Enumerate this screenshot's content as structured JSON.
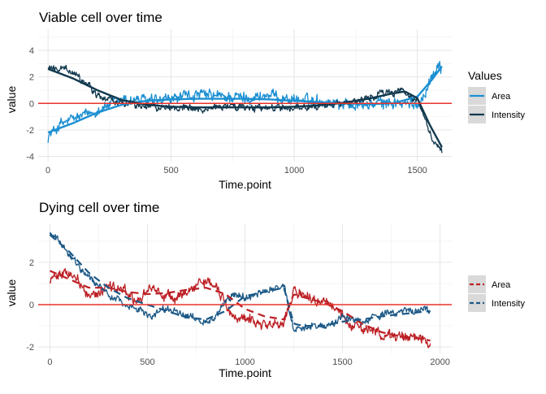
{
  "chart_data": [
    {
      "type": "line",
      "title": "Viable cell over time",
      "xlabel": "Time.point",
      "ylabel": "value",
      "xlim": [
        -40,
        1640
      ],
      "ylim": [
        -4.4,
        5.6
      ],
      "x_ticks": [
        0,
        500,
        1000,
        1500
      ],
      "y_ticks": [
        -4,
        -2,
        0,
        2,
        4
      ],
      "x_tick_labels": [
        "0",
        "500",
        "1000",
        "1500"
      ],
      "y_tick_labels": [
        "-4",
        "-2",
        "0",
        "2",
        "4"
      ],
      "grid": true,
      "reference_line": {
        "y": 0,
        "color": "#e8322a"
      },
      "legend": {
        "title": "Values",
        "position": "right",
        "entries": [
          "Area",
          "Intensity"
        ]
      },
      "series": [
        {
          "name": "Area",
          "color": "#1b8fd2",
          "raw": {
            "x": [
              0,
              50,
              100,
              150,
              200,
              250,
              300,
              350,
              400,
              450,
              500,
              550,
              600,
              650,
              700,
              750,
              800,
              850,
              900,
              950,
              1000,
              1050,
              1100,
              1150,
              1200,
              1250,
              1300,
              1350,
              1400,
              1450,
              1500,
              1530,
              1560,
              1590,
              1600
            ],
            "y": [
              -2.5,
              -1.6,
              -1.2,
              -0.9,
              -0.5,
              -0.1,
              0.3,
              0.3,
              0.2,
              0.1,
              0.3,
              0.5,
              0.6,
              0.6,
              0.5,
              0.5,
              0.4,
              0.5,
              0.6,
              0.4,
              0.3,
              0.2,
              0.2,
              0.1,
              0.0,
              -0.1,
              -0.1,
              0.0,
              0.1,
              -0.1,
              -0.1,
              0.8,
              2.0,
              3.2,
              2.6
            ],
            "noise": 0.55
          },
          "smooth": {
            "x": [
              0,
              100,
              200,
              300,
              400,
              500,
              600,
              700,
              800,
              900,
              1000,
              1100,
              1200,
              1300,
              1400,
              1500,
              1560,
              1600
            ],
            "y": [
              -2.2,
              -1.5,
              -0.7,
              -0.1,
              0.2,
              0.3,
              0.35,
              0.35,
              0.35,
              0.3,
              0.2,
              0.1,
              0.0,
              -0.05,
              0.0,
              0.5,
              1.8,
              2.8
            ]
          }
        },
        {
          "name": "Intensity",
          "color": "#12394f",
          "raw": {
            "x": [
              0,
              50,
              100,
              150,
              200,
              250,
              300,
              350,
              400,
              450,
              500,
              600,
              700,
              800,
              900,
              1000,
              1100,
              1200,
              1250,
              1300,
              1350,
              1400,
              1450,
              1500,
              1530,
              1560,
              1600
            ],
            "y": [
              2.8,
              2.6,
              2.3,
              1.6,
              0.6,
              0.2,
              0.0,
              -0.1,
              -0.2,
              -0.3,
              -0.3,
              -0.3,
              -0.3,
              -0.3,
              -0.35,
              -0.3,
              -0.2,
              0.0,
              0.2,
              0.4,
              0.6,
              0.8,
              0.9,
              0.3,
              -1.2,
              -2.6,
              -3.6
            ],
            "noise": 0.35
          },
          "smooth": {
            "x": [
              0,
              100,
              200,
              300,
              400,
              500,
              600,
              700,
              800,
              900,
              1000,
              1100,
              1200,
              1300,
              1400,
              1450,
              1500,
              1550,
              1600
            ],
            "y": [
              2.6,
              1.9,
              1.0,
              0.25,
              -0.1,
              -0.25,
              -0.3,
              -0.3,
              -0.3,
              -0.3,
              -0.25,
              -0.15,
              0.05,
              0.35,
              0.75,
              0.9,
              0.4,
              -1.6,
              -3.3
            ]
          }
        }
      ]
    },
    {
      "type": "line",
      "title": "Dying cell over time",
      "xlabel": "Time.point",
      "ylabel": "value",
      "xlim": [
        -60,
        2060
      ],
      "ylim": [
        -2.3,
        3.8
      ],
      "x_ticks": [
        0,
        500,
        1000,
        1500,
        2000
      ],
      "y_ticks": [
        -2,
        0,
        2
      ],
      "x_tick_labels": [
        "0",
        "500",
        "1000",
        "1500",
        "2000"
      ],
      "y_tick_labels": [
        "-2",
        "0",
        "2"
      ],
      "grid": true,
      "reference_line": {
        "y": 0,
        "color": "#e8322a"
      },
      "legend": {
        "title": "",
        "position": "right",
        "entries": [
          "Area",
          "Intensity"
        ]
      },
      "series": [
        {
          "name": "Area",
          "color": "#bc1f24",
          "raw": {
            "x": [
              0,
              50,
              100,
              150,
              200,
              250,
              300,
              350,
              400,
              450,
              500,
              550,
              600,
              650,
              700,
              750,
              800,
              850,
              900,
              950,
              1000,
              1050,
              1100,
              1150,
              1200,
              1250,
              1300,
              1350,
              1400,
              1450,
              1500,
              1550,
              1600,
              1650,
              1700,
              1750,
              1800,
              1850,
              1900,
              1950
            ],
            "y": [
              1.3,
              1.5,
              1.6,
              1.1,
              0.4,
              0.6,
              0.9,
              0.8,
              0.6,
              0.1,
              0.7,
              0.6,
              0.5,
              0.3,
              0.6,
              0.9,
              1.1,
              0.9,
              0.1,
              -0.6,
              -0.7,
              -0.8,
              -0.9,
              -1.0,
              -0.9,
              0.8,
              0.5,
              0.3,
              0.1,
              0.0,
              -0.5,
              -0.9,
              -1.1,
              -1.2,
              -1.4,
              -1.5,
              -1.6,
              -1.5,
              -1.7,
              -1.8
            ],
            "noise": 0.3
          },
          "smooth": {
            "x": [
              0,
              100,
              200,
              300,
              400,
              500,
              600,
              700,
              800,
              900,
              1000,
              1100,
              1200,
              1250,
              1300,
              1400,
              1500,
              1600,
              1700,
              1800,
              1900,
              1950
            ],
            "y": [
              1.6,
              1.2,
              0.8,
              0.8,
              0.6,
              0.5,
              0.55,
              0.7,
              0.8,
              0.5,
              -0.2,
              -0.55,
              -0.7,
              0.5,
              0.35,
              0.1,
              -0.3,
              -0.9,
              -1.3,
              -1.5,
              -1.6,
              -1.7
            ]
          }
        },
        {
          "name": "Intensity",
          "color": "#1b5886",
          "raw": {
            "x": [
              0,
              50,
              100,
              150,
              200,
              250,
              300,
              350,
              400,
              450,
              500,
              550,
              600,
              650,
              700,
              750,
              800,
              850,
              900,
              950,
              1000,
              1050,
              1100,
              1150,
              1200,
              1250,
              1300,
              1350,
              1400,
              1450,
              1500,
              1550,
              1600,
              1650,
              1700,
              1750,
              1800,
              1850,
              1900,
              1950
            ],
            "y": [
              3.4,
              3.0,
              2.3,
              1.8,
              1.3,
              0.9,
              0.5,
              0.2,
              -0.1,
              -0.2,
              -0.5,
              -0.4,
              -0.2,
              -0.3,
              -0.5,
              -0.6,
              -0.8,
              -0.6,
              0.2,
              0.5,
              0.3,
              0.5,
              0.7,
              0.8,
              0.9,
              -1.2,
              -1.1,
              -1.0,
              -1.0,
              -0.9,
              -0.6,
              -0.7,
              -0.8,
              -0.6,
              -0.5,
              -0.4,
              -0.4,
              -0.3,
              -0.3,
              -0.3
            ],
            "noise": 0.2
          },
          "smooth": {
            "x": [
              0,
              100,
              200,
              300,
              400,
              500,
              600,
              700,
              800,
              900,
              1000,
              1100,
              1200,
              1250,
              1300,
              1400,
              1500,
              1600,
              1700,
              1800,
              1900,
              1950
            ],
            "y": [
              3.3,
              2.5,
              1.5,
              0.8,
              0.3,
              0.0,
              -0.3,
              -0.6,
              -0.7,
              -0.3,
              0.4,
              0.6,
              0.8,
              -0.9,
              -1.0,
              -1.0,
              -0.8,
              -0.7,
              -0.55,
              -0.45,
              -0.35,
              -0.3
            ]
          }
        }
      ]
    }
  ]
}
